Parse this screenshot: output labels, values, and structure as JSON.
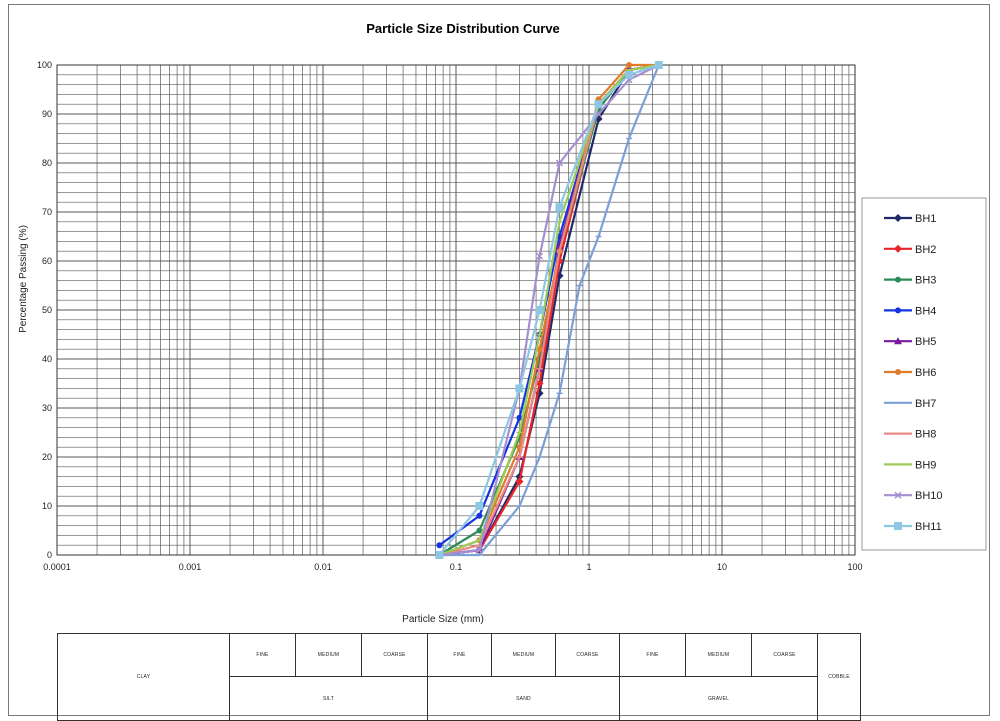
{
  "chart_data": {
    "type": "line",
    "title": "Particle Size Distribution Curve",
    "xlabel": "Particle Size (mm)",
    "ylabel": "Percentage Passing (%)",
    "x_scale": "log",
    "xlim": [
      0.0001,
      100
    ],
    "ylim": [
      0,
      100
    ],
    "x_ticks": [
      "0.0001",
      "0.001",
      "0.01",
      "0.1",
      "1",
      "10",
      "100"
    ],
    "y_ticks": [
      "0",
      "10",
      "20",
      "30",
      "40",
      "50",
      "60",
      "70",
      "80",
      "90",
      "100"
    ],
    "grid": true,
    "legend_position": "right",
    "series": [
      {
        "name": "BH1",
        "color": "#1f2a66",
        "marker": "diamond",
        "points": [
          [
            0.075,
            0
          ],
          [
            0.15,
            1
          ],
          [
            0.3,
            16
          ],
          [
            0.425,
            33
          ],
          [
            0.6,
            57
          ],
          [
            1.18,
            89
          ],
          [
            2,
            99
          ],
          [
            3.35,
            100
          ]
        ]
      },
      {
        "name": "BH2",
        "color": "#e8262a",
        "marker": "diamond",
        "points": [
          [
            0.075,
            0
          ],
          [
            0.15,
            1
          ],
          [
            0.3,
            15
          ],
          [
            0.425,
            35
          ],
          [
            0.6,
            60
          ],
          [
            1.18,
            92
          ],
          [
            2,
            99
          ],
          [
            3.35,
            100
          ]
        ]
      },
      {
        "name": "BH3",
        "color": "#2e8b57",
        "marker": "circle",
        "points": [
          [
            0.075,
            0
          ],
          [
            0.15,
            5
          ],
          [
            0.3,
            24
          ],
          [
            0.425,
            40
          ],
          [
            0.6,
            62
          ],
          [
            1.18,
            91
          ],
          [
            2,
            99
          ],
          [
            3.35,
            100
          ]
        ]
      },
      {
        "name": "BH4",
        "color": "#1533e0",
        "marker": "circle",
        "points": [
          [
            0.075,
            2
          ],
          [
            0.15,
            8
          ],
          [
            0.3,
            28
          ],
          [
            0.425,
            45
          ],
          [
            0.6,
            65
          ],
          [
            1.18,
            92
          ],
          [
            2,
            99
          ],
          [
            3.35,
            100
          ]
        ]
      },
      {
        "name": "BH5",
        "color": "#7a1aa0",
        "marker": "triangle",
        "points": [
          [
            0.075,
            0
          ],
          [
            0.15,
            1
          ],
          [
            0.3,
            20
          ],
          [
            0.425,
            38
          ],
          [
            0.6,
            63
          ],
          [
            1.18,
            92
          ],
          [
            2,
            99
          ],
          [
            3.35,
            100
          ]
        ]
      },
      {
        "name": "BH6",
        "color": "#e07b2a",
        "marker": "circle",
        "points": [
          [
            0.075,
            0
          ],
          [
            0.15,
            3
          ],
          [
            0.3,
            22
          ],
          [
            0.425,
            42
          ],
          [
            0.6,
            62
          ],
          [
            1.18,
            93
          ],
          [
            2,
            100
          ],
          [
            3.35,
            100
          ]
        ]
      },
      {
        "name": "BH7",
        "color": "#7b9fd6",
        "marker": "none",
        "points": [
          [
            0.075,
            0
          ],
          [
            0.15,
            0
          ],
          [
            0.3,
            10
          ],
          [
            0.425,
            20
          ],
          [
            0.6,
            33
          ],
          [
            0.85,
            55
          ],
          [
            1.18,
            65
          ],
          [
            2,
            85
          ],
          [
            3.35,
            100
          ]
        ]
      },
      {
        "name": "BH8",
        "color": "#e88a86",
        "marker": "none",
        "points": [
          [
            0.075,
            0
          ],
          [
            0.15,
            2
          ],
          [
            0.3,
            20
          ],
          [
            0.425,
            38
          ],
          [
            0.6,
            62
          ],
          [
            1.18,
            92
          ],
          [
            2,
            99
          ],
          [
            3.35,
            100
          ]
        ]
      },
      {
        "name": "BH9",
        "color": "#9ecb55",
        "marker": "none",
        "points": [
          [
            0.075,
            0
          ],
          [
            0.15,
            3
          ],
          [
            0.3,
            25
          ],
          [
            0.425,
            45
          ],
          [
            0.6,
            68
          ],
          [
            1.18,
            92
          ],
          [
            2,
            99
          ],
          [
            3.35,
            100
          ]
        ]
      },
      {
        "name": "BH10",
        "color": "#a58ed2",
        "marker": "cross",
        "points": [
          [
            0.075,
            0
          ],
          [
            0.15,
            1
          ],
          [
            0.3,
            34
          ],
          [
            0.425,
            61
          ],
          [
            0.6,
            80
          ],
          [
            1.18,
            90
          ],
          [
            2,
            97
          ],
          [
            3.35,
            100
          ]
        ]
      },
      {
        "name": "BH11",
        "color": "#8ec7e3",
        "marker": "square",
        "points": [
          [
            0.075,
            0
          ],
          [
            0.15,
            10
          ],
          [
            0.3,
            34
          ],
          [
            0.425,
            50
          ],
          [
            0.6,
            71
          ],
          [
            1.18,
            92
          ],
          [
            2,
            98
          ],
          [
            3.35,
            100
          ]
        ]
      }
    ]
  },
  "classification_table": {
    "clay": "CLAY",
    "cobble": "COBBLE",
    "groups": [
      {
        "name": "SILT",
        "subs": [
          "FINE",
          "MEDIUM",
          "COARSE"
        ]
      },
      {
        "name": "SAND",
        "subs": [
          "FINE",
          "MEDIUM",
          "COARSE"
        ]
      },
      {
        "name": "GRAVEL",
        "subs": [
          "FINE",
          "MEDIUM",
          "COARSE"
        ]
      }
    ]
  }
}
